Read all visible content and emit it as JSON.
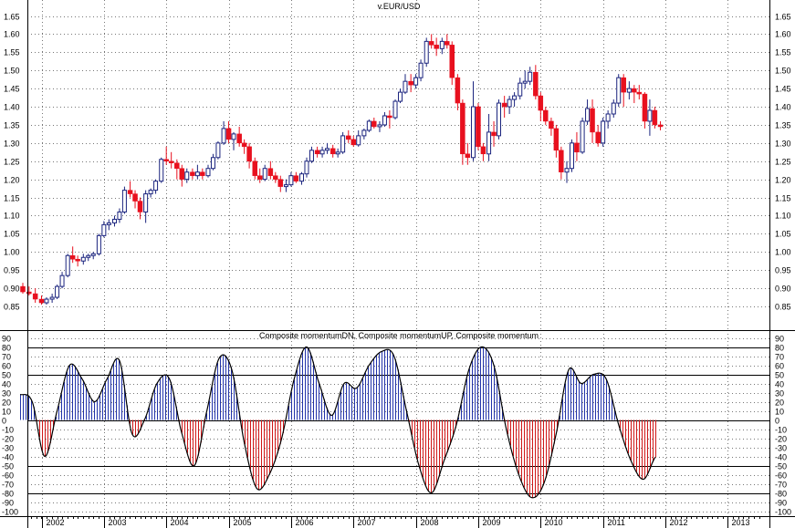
{
  "chart_data": [
    {
      "type": "candlestick",
      "title": "v.EUR/USD",
      "ylim": [
        0.8,
        1.67
      ],
      "yticks": [
        0.85,
        0.9,
        0.95,
        1.0,
        1.05,
        1.1,
        1.15,
        1.2,
        1.25,
        1.3,
        1.35,
        1.4,
        1.45,
        1.5,
        1.55,
        1.6,
        1.65
      ],
      "ytick_labels": [
        "0.85",
        "0.90",
        "0.95",
        "1.00",
        "1.05",
        "1.10",
        "1.15",
        "1.20",
        "1.25",
        "1.30",
        "1.35",
        "1.40",
        "1.45",
        "1.50",
        "1.55",
        "1.60",
        "1.65"
      ],
      "grid": true,
      "up_color": "#1a237e",
      "down_color": "#e8101e",
      "candles": [
        {
          "t": 2001.7,
          "o": 0.905,
          "h": 0.915,
          "l": 0.885,
          "c": 0.89
        },
        {
          "t": 2001.8,
          "o": 0.89,
          "h": 0.905,
          "l": 0.88,
          "c": 0.885
        },
        {
          "t": 2001.9,
          "o": 0.885,
          "h": 0.9,
          "l": 0.86,
          "c": 0.87
        },
        {
          "t": 2002.0,
          "o": 0.87,
          "h": 0.88,
          "l": 0.855,
          "c": 0.86
        },
        {
          "t": 2002.08,
          "o": 0.86,
          "h": 0.875,
          "l": 0.855,
          "c": 0.87
        },
        {
          "t": 2002.17,
          "o": 0.87,
          "h": 0.885,
          "l": 0.86,
          "c": 0.875
        },
        {
          "t": 2002.25,
          "o": 0.875,
          "h": 0.91,
          "l": 0.87,
          "c": 0.905
        },
        {
          "t": 2002.33,
          "o": 0.905,
          "h": 0.945,
          "l": 0.9,
          "c": 0.935
        },
        {
          "t": 2002.42,
          "o": 0.935,
          "h": 0.995,
          "l": 0.93,
          "c": 0.99
        },
        {
          "t": 2002.5,
          "o": 0.99,
          "h": 1.015,
          "l": 0.97,
          "c": 0.98
        },
        {
          "t": 2002.58,
          "o": 0.98,
          "h": 0.99,
          "l": 0.96,
          "c": 0.975
        },
        {
          "t": 2002.67,
          "o": 0.975,
          "h": 0.995,
          "l": 0.965,
          "c": 0.985
        },
        {
          "t": 2002.75,
          "o": 0.985,
          "h": 0.995,
          "l": 0.975,
          "c": 0.99
        },
        {
          "t": 2002.83,
          "o": 0.99,
          "h": 1.0,
          "l": 0.98,
          "c": 0.995
        },
        {
          "t": 2002.92,
          "o": 0.995,
          "h": 1.05,
          "l": 0.99,
          "c": 1.045
        },
        {
          "t": 2003.0,
          "o": 1.045,
          "h": 1.085,
          "l": 1.04,
          "c": 1.075
        },
        {
          "t": 2003.08,
          "o": 1.075,
          "h": 1.09,
          "l": 1.06,
          "c": 1.08
        },
        {
          "t": 2003.17,
          "o": 1.08,
          "h": 1.1,
          "l": 1.07,
          "c": 1.09
        },
        {
          "t": 2003.25,
          "o": 1.09,
          "h": 1.12,
          "l": 1.08,
          "c": 1.11
        },
        {
          "t": 2003.33,
          "o": 1.11,
          "h": 1.18,
          "l": 1.105,
          "c": 1.17
        },
        {
          "t": 2003.42,
          "o": 1.17,
          "h": 1.195,
          "l": 1.15,
          "c": 1.16
        },
        {
          "t": 2003.5,
          "o": 1.16,
          "h": 1.17,
          "l": 1.12,
          "c": 1.14
        },
        {
          "t": 2003.58,
          "o": 1.14,
          "h": 1.15,
          "l": 1.09,
          "c": 1.11
        },
        {
          "t": 2003.67,
          "o": 1.11,
          "h": 1.17,
          "l": 1.08,
          "c": 1.16
        },
        {
          "t": 2003.75,
          "o": 1.16,
          "h": 1.175,
          "l": 1.15,
          "c": 1.17
        },
        {
          "t": 2003.83,
          "o": 1.17,
          "h": 1.2,
          "l": 1.16,
          "c": 1.195
        },
        {
          "t": 2003.92,
          "o": 1.195,
          "h": 1.26,
          "l": 1.19,
          "c": 1.255
        },
        {
          "t": 2004.0,
          "o": 1.255,
          "h": 1.29,
          "l": 1.24,
          "c": 1.25
        },
        {
          "t": 2004.08,
          "o": 1.25,
          "h": 1.275,
          "l": 1.23,
          "c": 1.245
        },
        {
          "t": 2004.17,
          "o": 1.245,
          "h": 1.255,
          "l": 1.2,
          "c": 1.23
        },
        {
          "t": 2004.25,
          "o": 1.23,
          "h": 1.24,
          "l": 1.18,
          "c": 1.2
        },
        {
          "t": 2004.33,
          "o": 1.2,
          "h": 1.23,
          "l": 1.19,
          "c": 1.22
        },
        {
          "t": 2004.42,
          "o": 1.22,
          "h": 1.23,
          "l": 1.2,
          "c": 1.21
        },
        {
          "t": 2004.5,
          "o": 1.21,
          "h": 1.24,
          "l": 1.2,
          "c": 1.22
        },
        {
          "t": 2004.58,
          "o": 1.22,
          "h": 1.23,
          "l": 1.2,
          "c": 1.21
        },
        {
          "t": 2004.67,
          "o": 1.21,
          "h": 1.24,
          "l": 1.205,
          "c": 1.23
        },
        {
          "t": 2004.75,
          "o": 1.23,
          "h": 1.27,
          "l": 1.225,
          "c": 1.26
        },
        {
          "t": 2004.83,
          "o": 1.26,
          "h": 1.305,
          "l": 1.255,
          "c": 1.3
        },
        {
          "t": 2004.92,
          "o": 1.3,
          "h": 1.36,
          "l": 1.295,
          "c": 1.34
        },
        {
          "t": 2005.0,
          "o": 1.34,
          "h": 1.36,
          "l": 1.3,
          "c": 1.31
        },
        {
          "t": 2005.08,
          "o": 1.31,
          "h": 1.33,
          "l": 1.28,
          "c": 1.325
        },
        {
          "t": 2005.17,
          "o": 1.325,
          "h": 1.345,
          "l": 1.29,
          "c": 1.3
        },
        {
          "t": 2005.25,
          "o": 1.3,
          "h": 1.31,
          "l": 1.27,
          "c": 1.29
        },
        {
          "t": 2005.33,
          "o": 1.29,
          "h": 1.3,
          "l": 1.23,
          "c": 1.25
        },
        {
          "t": 2005.42,
          "o": 1.25,
          "h": 1.26,
          "l": 1.2,
          "c": 1.21
        },
        {
          "t": 2005.5,
          "o": 1.21,
          "h": 1.23,
          "l": 1.19,
          "c": 1.2
        },
        {
          "t": 2005.58,
          "o": 1.2,
          "h": 1.24,
          "l": 1.195,
          "c": 1.23
        },
        {
          "t": 2005.67,
          "o": 1.23,
          "h": 1.25,
          "l": 1.2,
          "c": 1.21
        },
        {
          "t": 2005.75,
          "o": 1.21,
          "h": 1.22,
          "l": 1.19,
          "c": 1.2
        },
        {
          "t": 2005.83,
          "o": 1.2,
          "h": 1.21,
          "l": 1.165,
          "c": 1.18
        },
        {
          "t": 2005.92,
          "o": 1.18,
          "h": 1.2,
          "l": 1.165,
          "c": 1.185
        },
        {
          "t": 2006.0,
          "o": 1.185,
          "h": 1.22,
          "l": 1.18,
          "c": 1.21
        },
        {
          "t": 2006.08,
          "o": 1.21,
          "h": 1.22,
          "l": 1.19,
          "c": 1.195
        },
        {
          "t": 2006.17,
          "o": 1.195,
          "h": 1.22,
          "l": 1.185,
          "c": 1.215
        },
        {
          "t": 2006.25,
          "o": 1.215,
          "h": 1.26,
          "l": 1.205,
          "c": 1.25
        },
        {
          "t": 2006.33,
          "o": 1.25,
          "h": 1.29,
          "l": 1.245,
          "c": 1.28
        },
        {
          "t": 2006.42,
          "o": 1.28,
          "h": 1.29,
          "l": 1.26,
          "c": 1.27
        },
        {
          "t": 2006.5,
          "o": 1.27,
          "h": 1.29,
          "l": 1.26,
          "c": 1.28
        },
        {
          "t": 2006.58,
          "o": 1.28,
          "h": 1.3,
          "l": 1.27,
          "c": 1.285
        },
        {
          "t": 2006.67,
          "o": 1.285,
          "h": 1.295,
          "l": 1.26,
          "c": 1.27
        },
        {
          "t": 2006.75,
          "o": 1.27,
          "h": 1.285,
          "l": 1.26,
          "c": 1.275
        },
        {
          "t": 2006.83,
          "o": 1.275,
          "h": 1.33,
          "l": 1.27,
          "c": 1.32
        },
        {
          "t": 2006.92,
          "o": 1.32,
          "h": 1.335,
          "l": 1.3,
          "c": 1.31
        },
        {
          "t": 2007.0,
          "o": 1.31,
          "h": 1.32,
          "l": 1.29,
          "c": 1.295
        },
        {
          "t": 2007.08,
          "o": 1.295,
          "h": 1.335,
          "l": 1.29,
          "c": 1.32
        },
        {
          "t": 2007.17,
          "o": 1.32,
          "h": 1.34,
          "l": 1.31,
          "c": 1.335
        },
        {
          "t": 2007.25,
          "o": 1.335,
          "h": 1.365,
          "l": 1.33,
          "c": 1.36
        },
        {
          "t": 2007.33,
          "o": 1.36,
          "h": 1.37,
          "l": 1.34,
          "c": 1.345
        },
        {
          "t": 2007.42,
          "o": 1.345,
          "h": 1.36,
          "l": 1.33,
          "c": 1.35
        },
        {
          "t": 2007.5,
          "o": 1.35,
          "h": 1.385,
          "l": 1.345,
          "c": 1.375
        },
        {
          "t": 2007.58,
          "o": 1.375,
          "h": 1.39,
          "l": 1.34,
          "c": 1.37
        },
        {
          "t": 2007.67,
          "o": 1.37,
          "h": 1.42,
          "l": 1.365,
          "c": 1.415
        },
        {
          "t": 2007.75,
          "o": 1.415,
          "h": 1.45,
          "l": 1.41,
          "c": 1.44
        },
        {
          "t": 2007.83,
          "o": 1.44,
          "h": 1.49,
          "l": 1.435,
          "c": 1.47
        },
        {
          "t": 2007.92,
          "o": 1.47,
          "h": 1.49,
          "l": 1.44,
          "c": 1.46
        },
        {
          "t": 2008.0,
          "o": 1.46,
          "h": 1.49,
          "l": 1.45,
          "c": 1.48
        },
        {
          "t": 2008.08,
          "o": 1.48,
          "h": 1.53,
          "l": 1.47,
          "c": 1.52
        },
        {
          "t": 2008.17,
          "o": 1.52,
          "h": 1.59,
          "l": 1.51,
          "c": 1.58
        },
        {
          "t": 2008.25,
          "o": 1.58,
          "h": 1.6,
          "l": 1.56,
          "c": 1.57
        },
        {
          "t": 2008.33,
          "o": 1.57,
          "h": 1.59,
          "l": 1.54,
          "c": 1.56
        },
        {
          "t": 2008.42,
          "o": 1.56,
          "h": 1.59,
          "l": 1.545,
          "c": 1.58
        },
        {
          "t": 2008.5,
          "o": 1.58,
          "h": 1.6,
          "l": 1.56,
          "c": 1.57
        },
        {
          "t": 2008.58,
          "o": 1.57,
          "h": 1.58,
          "l": 1.46,
          "c": 1.48
        },
        {
          "t": 2008.67,
          "o": 1.48,
          "h": 1.49,
          "l": 1.39,
          "c": 1.41
        },
        {
          "t": 2008.75,
          "o": 1.41,
          "h": 1.42,
          "l": 1.24,
          "c": 1.27
        },
        {
          "t": 2008.83,
          "o": 1.27,
          "h": 1.3,
          "l": 1.24,
          "c": 1.26
        },
        {
          "t": 2008.92,
          "o": 1.26,
          "h": 1.47,
          "l": 1.25,
          "c": 1.4
        },
        {
          "t": 2009.0,
          "o": 1.4,
          "h": 1.41,
          "l": 1.28,
          "c": 1.29
        },
        {
          "t": 2009.08,
          "o": 1.29,
          "h": 1.3,
          "l": 1.25,
          "c": 1.27
        },
        {
          "t": 2009.17,
          "o": 1.27,
          "h": 1.38,
          "l": 1.25,
          "c": 1.33
        },
        {
          "t": 2009.25,
          "o": 1.33,
          "h": 1.36,
          "l": 1.29,
          "c": 1.32
        },
        {
          "t": 2009.33,
          "o": 1.32,
          "h": 1.42,
          "l": 1.31,
          "c": 1.41
        },
        {
          "t": 2009.42,
          "o": 1.41,
          "h": 1.43,
          "l": 1.37,
          "c": 1.4
        },
        {
          "t": 2009.5,
          "o": 1.4,
          "h": 1.43,
          "l": 1.38,
          "c": 1.42
        },
        {
          "t": 2009.58,
          "o": 1.42,
          "h": 1.44,
          "l": 1.4,
          "c": 1.43
        },
        {
          "t": 2009.67,
          "o": 1.43,
          "h": 1.48,
          "l": 1.42,
          "c": 1.465
        },
        {
          "t": 2009.75,
          "o": 1.465,
          "h": 1.5,
          "l": 1.45,
          "c": 1.47
        },
        {
          "t": 2009.83,
          "o": 1.47,
          "h": 1.51,
          "l": 1.46,
          "c": 1.495
        },
        {
          "t": 2009.92,
          "o": 1.495,
          "h": 1.515,
          "l": 1.42,
          "c": 1.43
        },
        {
          "t": 2010.0,
          "o": 1.43,
          "h": 1.44,
          "l": 1.36,
          "c": 1.39
        },
        {
          "t": 2010.08,
          "o": 1.39,
          "h": 1.4,
          "l": 1.35,
          "c": 1.36
        },
        {
          "t": 2010.17,
          "o": 1.36,
          "h": 1.37,
          "l": 1.32,
          "c": 1.34
        },
        {
          "t": 2010.25,
          "o": 1.34,
          "h": 1.35,
          "l": 1.26,
          "c": 1.28
        },
        {
          "t": 2010.33,
          "o": 1.28,
          "h": 1.29,
          "l": 1.2,
          "c": 1.22
        },
        {
          "t": 2010.42,
          "o": 1.22,
          "h": 1.25,
          "l": 1.19,
          "c": 1.23
        },
        {
          "t": 2010.5,
          "o": 1.23,
          "h": 1.31,
          "l": 1.22,
          "c": 1.3
        },
        {
          "t": 2010.58,
          "o": 1.3,
          "h": 1.33,
          "l": 1.25,
          "c": 1.275
        },
        {
          "t": 2010.67,
          "o": 1.275,
          "h": 1.37,
          "l": 1.27,
          "c": 1.36
        },
        {
          "t": 2010.75,
          "o": 1.36,
          "h": 1.42,
          "l": 1.35,
          "c": 1.395
        },
        {
          "t": 2010.83,
          "o": 1.395,
          "h": 1.42,
          "l": 1.3,
          "c": 1.33
        },
        {
          "t": 2010.92,
          "o": 1.33,
          "h": 1.35,
          "l": 1.29,
          "c": 1.3
        },
        {
          "t": 2011.0,
          "o": 1.3,
          "h": 1.37,
          "l": 1.29,
          "c": 1.36
        },
        {
          "t": 2011.08,
          "o": 1.36,
          "h": 1.39,
          "l": 1.34,
          "c": 1.38
        },
        {
          "t": 2011.17,
          "o": 1.38,
          "h": 1.42,
          "l": 1.37,
          "c": 1.41
        },
        {
          "t": 2011.25,
          "o": 1.41,
          "h": 1.49,
          "l": 1.4,
          "c": 1.48
        },
        {
          "t": 2011.33,
          "o": 1.48,
          "h": 1.49,
          "l": 1.4,
          "c": 1.44
        },
        {
          "t": 2011.42,
          "o": 1.44,
          "h": 1.47,
          "l": 1.42,
          "c": 1.45
        },
        {
          "t": 2011.5,
          "o": 1.45,
          "h": 1.46,
          "l": 1.41,
          "c": 1.44
        },
        {
          "t": 2011.58,
          "o": 1.44,
          "h": 1.46,
          "l": 1.42,
          "c": 1.435
        },
        {
          "t": 2011.67,
          "o": 1.435,
          "h": 1.44,
          "l": 1.34,
          "c": 1.36
        },
        {
          "t": 2011.75,
          "o": 1.36,
          "h": 1.42,
          "l": 1.32,
          "c": 1.39
        },
        {
          "t": 2011.83,
          "o": 1.39,
          "h": 1.4,
          "l": 1.34,
          "c": 1.35
        },
        {
          "t": 2011.92,
          "o": 1.35,
          "h": 1.36,
          "l": 1.335,
          "c": 1.345
        }
      ]
    },
    {
      "type": "line+bar",
      "title": "Composite momentumDN, Composite momentumUP, Composite momentum",
      "ylim": [
        -103,
        93
      ],
      "yticks": [
        -100,
        -90,
        -80,
        -70,
        -60,
        -50,
        -40,
        -30,
        -20,
        -10,
        0,
        10,
        20,
        30,
        40,
        50,
        60,
        70,
        80,
        90
      ],
      "ytick_labels": [
        "-100",
        "-90",
        "-80",
        "-70",
        "-60",
        "-50",
        "-40",
        "-30",
        "-20",
        "-10",
        "0",
        "10",
        "20",
        "30",
        "40",
        "50",
        "60",
        "70",
        "80",
        "90"
      ],
      "hlines": [
        80,
        50,
        0,
        -50,
        -80
      ],
      "up_color": "#2233aa",
      "down_color": "#d01818",
      "line_color": "#000000",
      "series": [
        {
          "name": "Composite momentum",
          "x": [
            2001.65,
            2001.85,
            2002.05,
            2002.25,
            2002.45,
            2002.65,
            2002.85,
            2003.05,
            2003.25,
            2003.45,
            2003.65,
            2003.85,
            2004.05,
            2004.25,
            2004.45,
            2004.65,
            2004.85,
            2005.05,
            2005.25,
            2005.45,
            2005.65,
            2005.85,
            2006.05,
            2006.25,
            2006.45,
            2006.65,
            2006.85,
            2007.05,
            2007.25,
            2007.45,
            2007.65,
            2007.85,
            2008.05,
            2008.25,
            2008.45,
            2008.65,
            2008.85,
            2009.05,
            2009.25,
            2009.45,
            2009.65,
            2009.85,
            2010.05,
            2010.25,
            2010.45,
            2010.65,
            2010.85,
            2011.05,
            2011.25,
            2011.45,
            2011.65,
            2011.85
          ],
          "values": [
            28,
            20,
            -40,
            10,
            60,
            45,
            20,
            45,
            65,
            -15,
            0,
            40,
            45,
            -15,
            -50,
            10,
            68,
            55,
            -25,
            -75,
            -60,
            -20,
            45,
            80,
            40,
            5,
            40,
            35,
            60,
            75,
            70,
            10,
            -50,
            -80,
            -45,
            -5,
            55,
            80,
            60,
            -10,
            -60,
            -85,
            -70,
            -15,
            55,
            40,
            50,
            45,
            -5,
            -45,
            -65,
            -40
          ]
        }
      ]
    }
  ],
  "x_axis": {
    "labels": [
      "2002",
      "2003",
      "2004",
      "2005",
      "2006",
      "2007",
      "2008",
      "2009",
      "2010",
      "2011",
      "2012",
      "2013"
    ]
  }
}
